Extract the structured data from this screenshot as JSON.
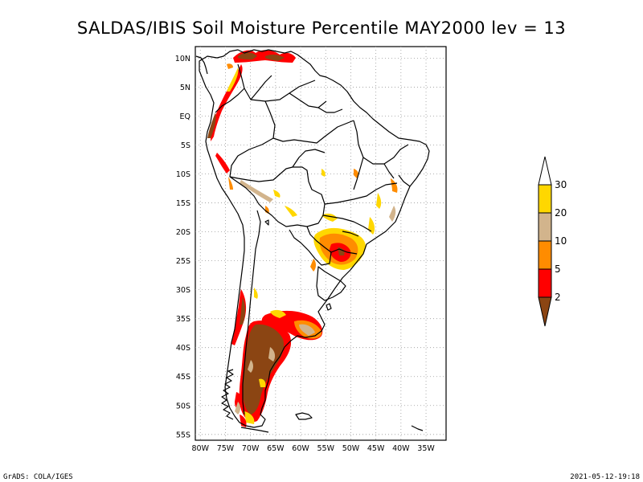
{
  "title": "SALDAS/IBIS Soil Moisture Percentile MAY2000 lev = 13",
  "footer": {
    "left": "GrADS: COLA/IGES",
    "right": "2021-05-12-19:18"
  },
  "map": {
    "projection": "lat-lon",
    "lon_range": [
      -81,
      -31
    ],
    "lat_range": [
      -56,
      12
    ],
    "grid": "dotted",
    "lat_labels": [
      "10N",
      "5N",
      "EQ",
      "5S",
      "10S",
      "15S",
      "20S",
      "25S",
      "30S",
      "35S",
      "40S",
      "45S",
      "50S",
      "55S"
    ],
    "lon_labels": [
      "80W",
      "75W",
      "70W",
      "65W",
      "60W",
      "55W",
      "50W",
      "45W",
      "40W",
      "35W"
    ]
  },
  "legend": {
    "position": "right",
    "labels": [
      "30",
      "20",
      "10",
      "5",
      "2"
    ],
    "colors": {
      "above_30": "#ffffff",
      "20_30": "#ffd700",
      "10_20": "#d2b48c",
      "5_10": "#ff8c00",
      "2_5": "#ff0000",
      "below_2": "#8b4513"
    }
  }
}
